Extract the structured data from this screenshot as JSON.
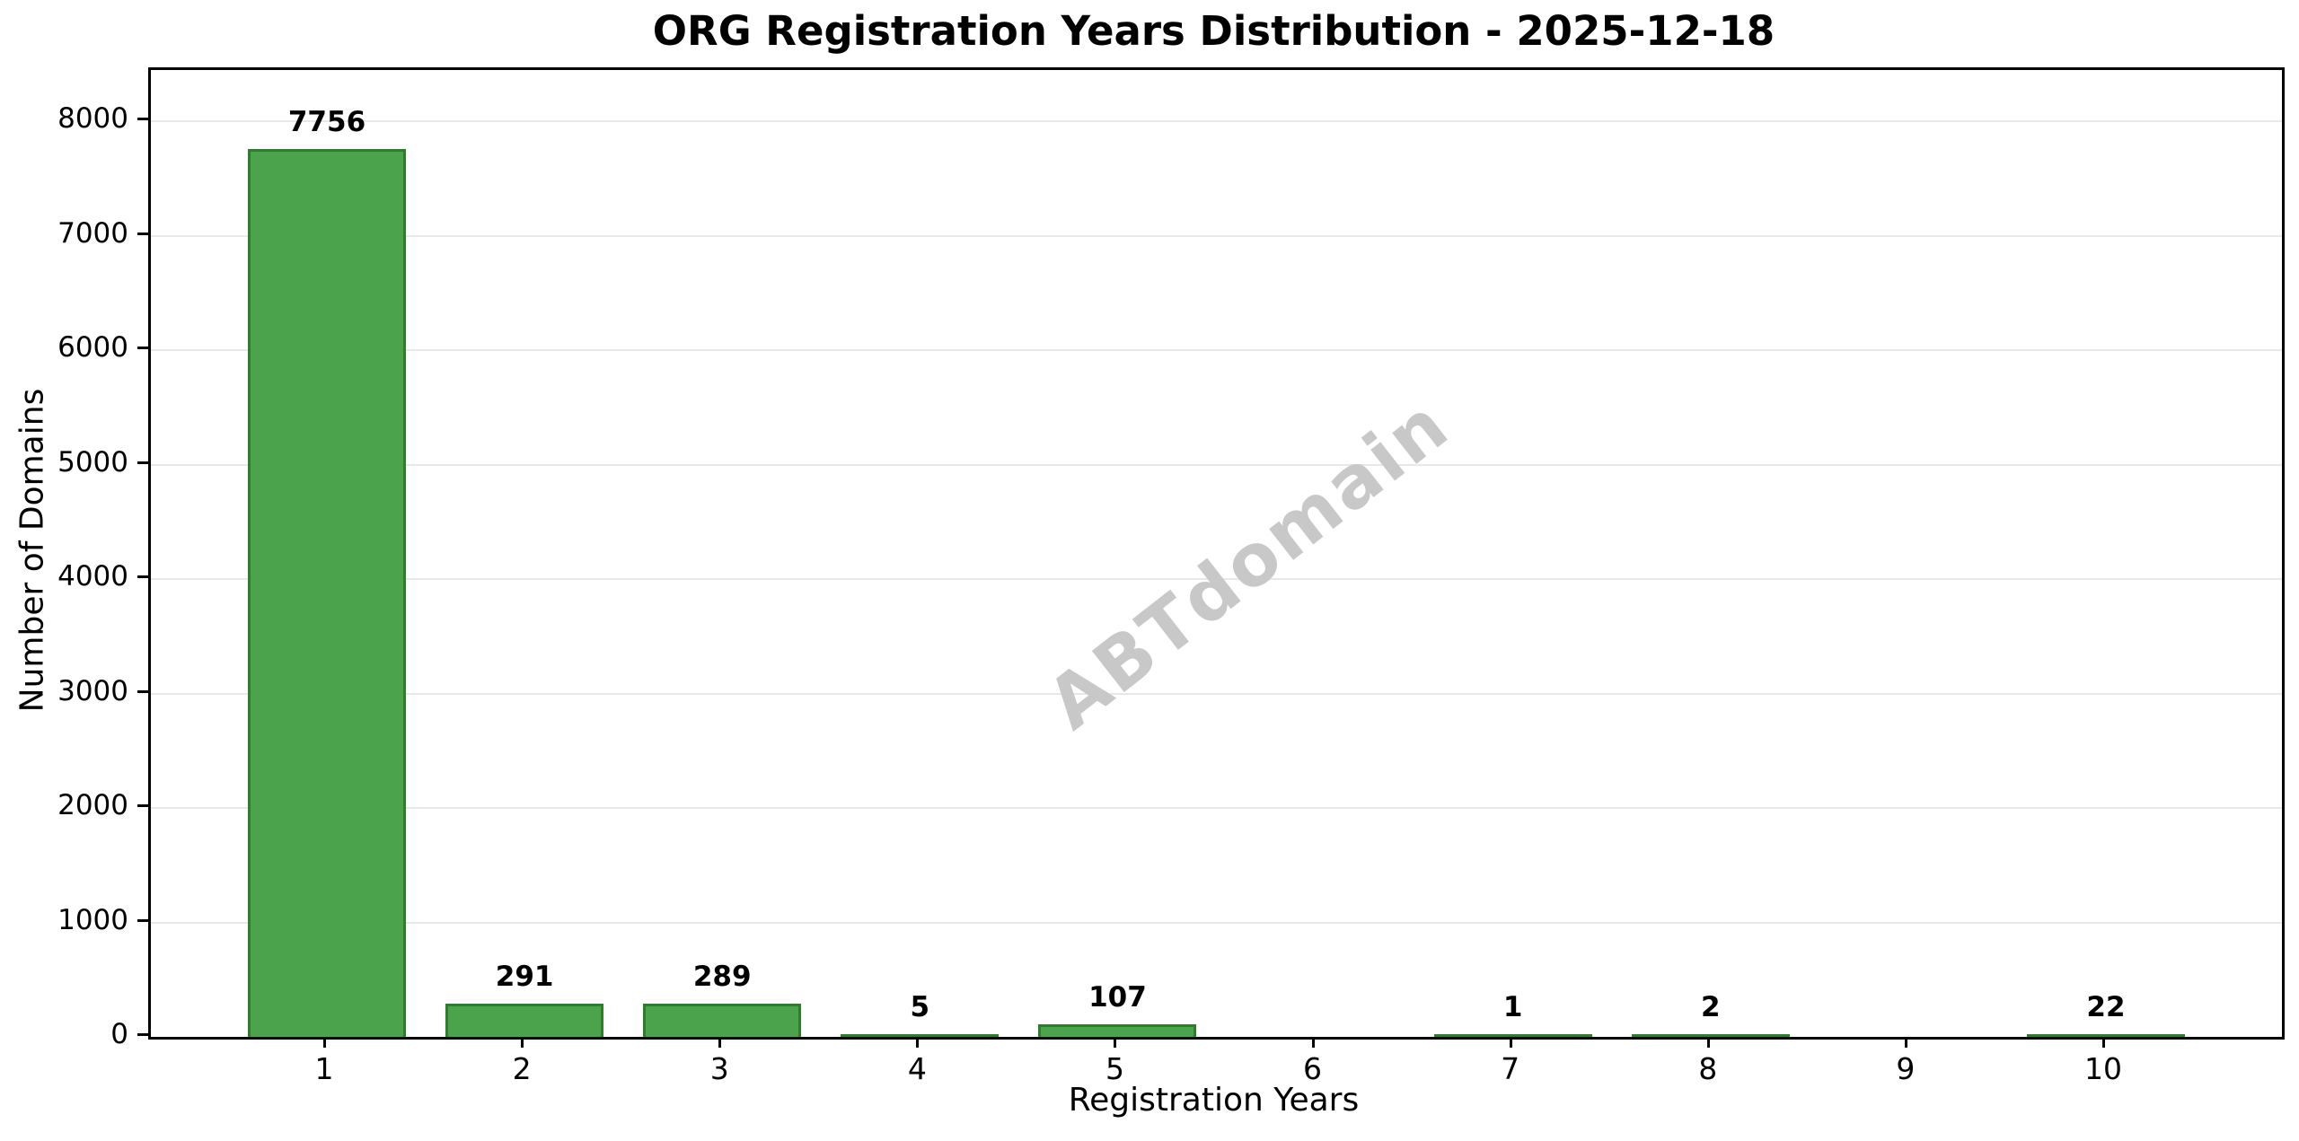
{
  "figure": {
    "title": "ORG Registration Years Distribution - 2025-12-18",
    "watermark": "ABTdomain"
  },
  "colors": {
    "bar_fill": "#4ba34b",
    "bar_edge": "#2d7d2d",
    "grid": "#e8e8e8",
    "spine": "#000000",
    "text": "#000000",
    "watermark": "#c8c8c8",
    "background": "#ffffff"
  },
  "chart_data": {
    "type": "bar",
    "title": "ORG Registration Years Distribution - 2025-12-18",
    "xlabel": "Registration Years",
    "ylabel": "Number of Domains",
    "categories": [
      "1",
      "2",
      "3",
      "4",
      "5",
      "6",
      "7",
      "8",
      "9",
      "10"
    ],
    "values": [
      7756,
      291,
      289,
      5,
      107,
      0,
      1,
      2,
      0,
      22
    ],
    "bar_labels": [
      "7756",
      "291",
      "289",
      "5",
      "107",
      "",
      "1",
      "2",
      "",
      "22"
    ],
    "yticks": [
      0,
      1000,
      2000,
      3000,
      4000,
      5000,
      6000,
      7000,
      8000
    ],
    "ytick_labels": [
      "0",
      "1000",
      "2000",
      "3000",
      "4000",
      "5000",
      "6000",
      "7000",
      "8000"
    ],
    "ylim": [
      0,
      8450
    ],
    "grid": "horizontal-y",
    "legend": "none",
    "watermark": "ABTdomain"
  }
}
